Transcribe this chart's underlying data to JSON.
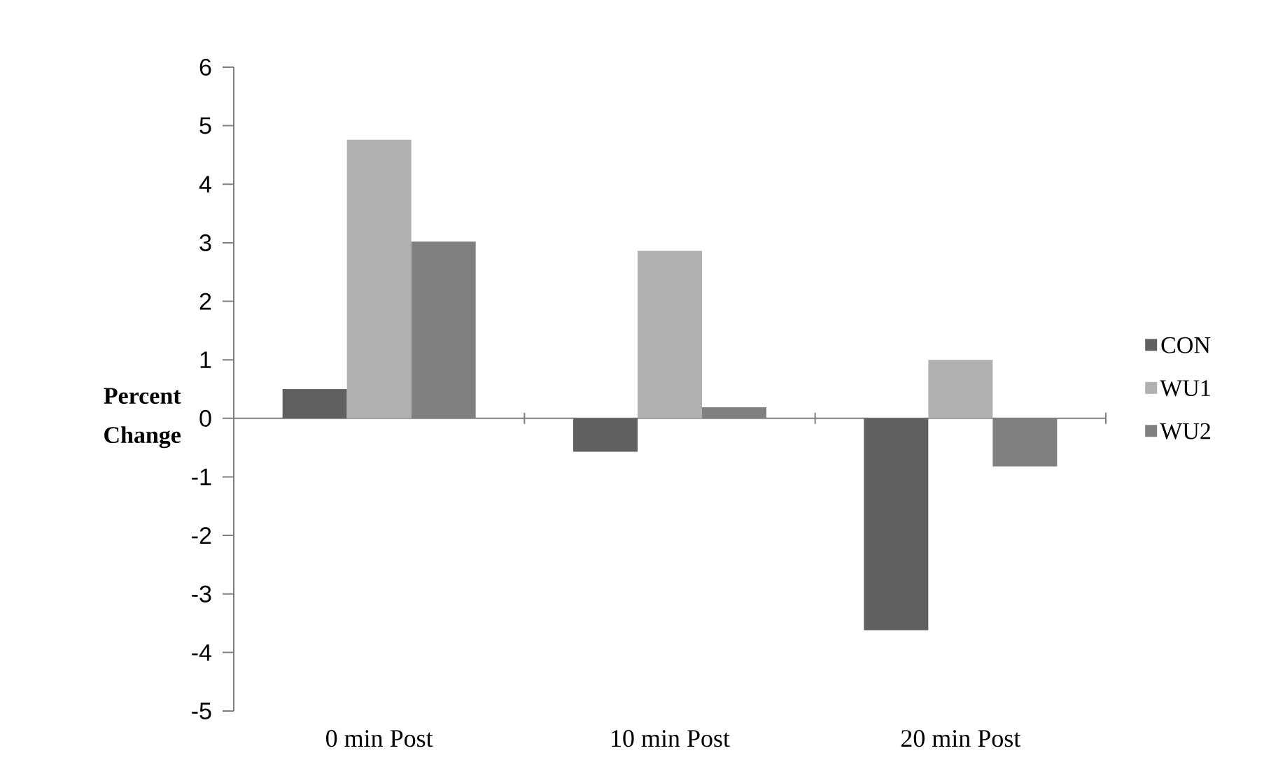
{
  "chart_data": {
    "type": "bar",
    "ylabel": "Percent Change",
    "categories": [
      "0 min Post",
      "10 min Post",
      "20 min Post"
    ],
    "series": [
      {
        "name": "CON",
        "color": "#606060",
        "values": [
          0.5,
          -0.57,
          -3.62
        ]
      },
      {
        "name": "WU1",
        "color": "#b0b0b0",
        "values": [
          4.76,
          2.86,
          1.0
        ]
      },
      {
        "name": "WU2",
        "color": "#808080",
        "values": [
          3.02,
          0.19,
          -0.82
        ]
      }
    ],
    "ylim": [
      -5,
      6
    ],
    "yticks": [
      -5,
      -4,
      -3,
      -2,
      -1,
      0,
      1,
      2,
      3,
      4,
      5,
      6
    ],
    "legend": "right"
  }
}
